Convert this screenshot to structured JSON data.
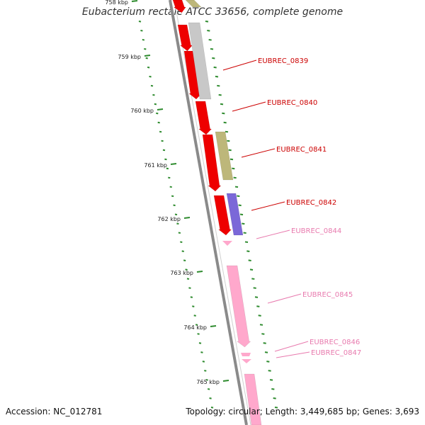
{
  "title": "Eubacterium rectale ATCC 33656, complete genome",
  "footer": {
    "accession": "Accession: NC_012781",
    "summary": "Topology: circular; Length: 3,449,685 bp; Genes: 3,693"
  },
  "ticks": [
    "758 kbp",
    "759 kbp",
    "760 kbp",
    "761 kbp",
    "762 kbp",
    "763 kbp",
    "764 kbp",
    "765 kbp"
  ],
  "colors": {
    "backbone": "#8a8a8a",
    "dots": "#2e8b2e",
    "red": "#ee0000",
    "grey": "#c8c8c8",
    "olive": "#bdb77a",
    "purple": "#7b68d8",
    "pink": "#ffa8cc",
    "label_red": "#cc0000",
    "label_pink": "#e87aae"
  },
  "genes": [
    {
      "id": "EUBREC_0839",
      "color": "red"
    },
    {
      "id": "EUBREC_0840",
      "color": "red"
    },
    {
      "id": "EUBREC_0841",
      "color": "red"
    },
    {
      "id": "EUBREC_0842",
      "color": "red"
    },
    {
      "id": "EUBREC_0844",
      "color": "pink"
    },
    {
      "id": "EUBREC_0845",
      "color": "pink"
    },
    {
      "id": "EUBREC_0846",
      "color": "pink"
    },
    {
      "id": "EUBREC_0847",
      "color": "pink"
    }
  ]
}
